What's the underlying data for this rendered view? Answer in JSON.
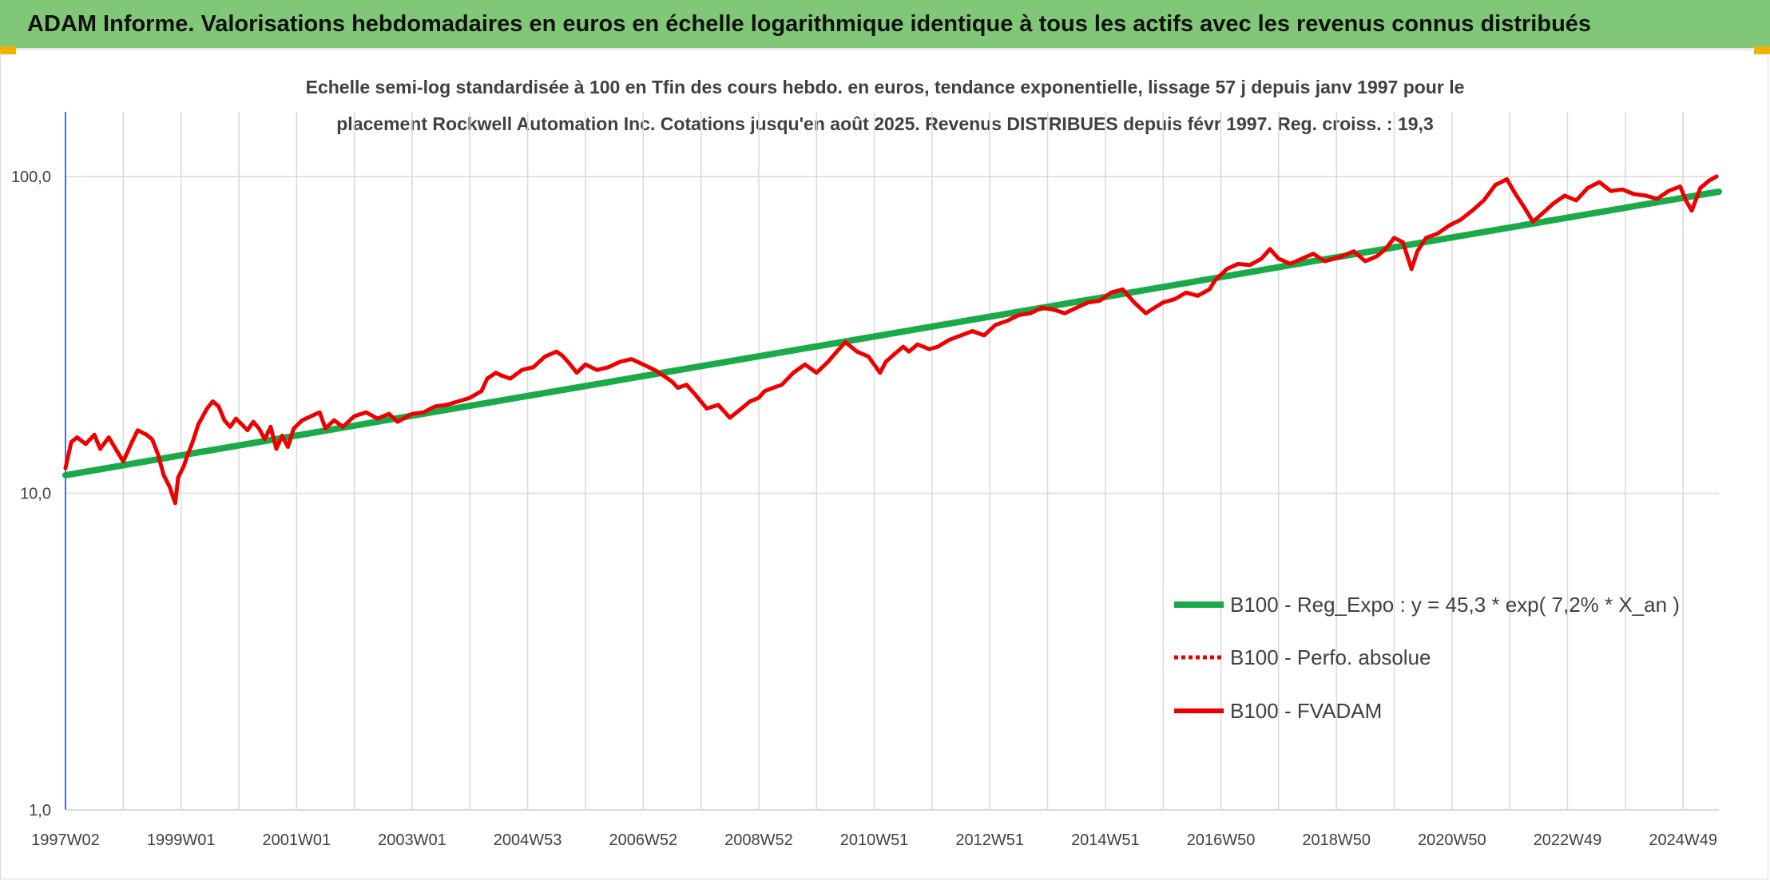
{
  "header": {
    "title": "ADAM Informe. Valorisations hebdomadaires en euros en échelle logarithmique identique à tous les actifs avec les revenus connus distribués"
  },
  "colors": {
    "banner": "#80c878",
    "corner": "#f0b400",
    "trend": "#1aaa4a",
    "fvadam": "#ee0000",
    "perfo": "#ee0000",
    "grid": "#d9d9d9",
    "axis": "#4472c4"
  },
  "chart_data": {
    "type": "line",
    "title_lines": [
      "Echelle semi-log standardisée à 100 en Tfin des cours hebdo. en euros, tendance exponentielle, lissage 57 j depuis janv 1997 pour le",
      "placement Rockwell Automation Inc. Cotations jusqu'en août 2025. Revenus DISTRIBUES depuis févr 1997. Reg. croiss. : 19,3"
    ],
    "y_scale": "log",
    "ylim": [
      1,
      160
    ],
    "y_ticks": [
      {
        "value": 1,
        "label": "1,0"
      },
      {
        "value": 10,
        "label": "10,0"
      },
      {
        "value": 100,
        "label": "100,0"
      }
    ],
    "xlim": [
      1997.0,
      2025.62
    ],
    "x_ticks": [
      {
        "value": 1997.0,
        "label": "1997W02"
      },
      {
        "value": 1999.0,
        "label": "1999W01"
      },
      {
        "value": 2001.0,
        "label": "2001W01"
      },
      {
        "value": 2003.0,
        "label": "2003W01"
      },
      {
        "value": 2005.0,
        "label": "2004W53"
      },
      {
        "value": 2007.0,
        "label": "2006W52"
      },
      {
        "value": 2009.0,
        "label": "2008W52"
      },
      {
        "value": 2011.0,
        "label": "2010W51"
      },
      {
        "value": 2013.0,
        "label": "2012W51"
      },
      {
        "value": 2015.0,
        "label": "2014W51"
      },
      {
        "value": 2017.0,
        "label": "2016W50"
      },
      {
        "value": 2019.0,
        "label": "2018W50"
      },
      {
        "value": 2021.0,
        "label": "2020W50"
      },
      {
        "value": 2023.0,
        "label": "2022W49"
      },
      {
        "value": 2025.0,
        "label": "2024W49"
      }
    ],
    "x_gridlines": [
      1998.0,
      2000.0,
      2002.0,
      2004.0,
      2006.0,
      2008.0,
      2010.0,
      2012.0,
      2014.0,
      2016.0,
      2018.0,
      2020.0,
      2022.0,
      2024.0
    ],
    "grid": true,
    "legend_position": "right",
    "series": [
      {
        "name": "B100 - Reg_Expo : y = 45,3 * exp( 7,2% *  X_an )",
        "style": "thick-solid",
        "color": "#1aaa4a",
        "x": [
          1997.0,
          2025.62
        ],
        "values": [
          11.4,
          89.5
        ]
      },
      {
        "name": "B100 - Perfo. absolue",
        "style": "dotted",
        "color": "#ee0000",
        "x": [],
        "values": []
      },
      {
        "name": "B100 - FVADAM",
        "style": "solid",
        "color": "#ee0000",
        "x": [
          1997.0,
          1997.1,
          1997.2,
          1997.35,
          1997.5,
          1997.6,
          1997.75,
          1997.9,
          1998.0,
          1998.15,
          1998.25,
          1998.4,
          1998.5,
          1998.6,
          1998.7,
          1998.8,
          1998.9,
          1998.95,
          1999.05,
          1999.1,
          1999.2,
          1999.3,
          1999.45,
          1999.55,
          1999.65,
          1999.75,
          1999.85,
          1999.95,
          2000.05,
          2000.15,
          2000.25,
          2000.35,
          2000.45,
          2000.55,
          2000.65,
          2000.75,
          2000.85,
          2000.95,
          2001.1,
          2001.25,
          2001.4,
          2001.5,
          2001.65,
          2001.8,
          2002.0,
          2002.2,
          2002.4,
          2002.6,
          2002.75,
          2002.85,
          2003.0,
          2003.2,
          2003.4,
          2003.6,
          2003.8,
          2004.0,
          2004.2,
          2004.3,
          2004.45,
          2004.55,
          2004.7,
          2004.9,
          2005.1,
          2005.3,
          2005.5,
          2005.6,
          2005.7,
          2005.85,
          2006.0,
          2006.2,
          2006.4,
          2006.6,
          2006.8,
          2007.0,
          2007.2,
          2007.35,
          2007.5,
          2007.6,
          2007.75,
          2007.9,
          2008.1,
          2008.3,
          2008.5,
          2008.7,
          2008.85,
          2009.0,
          2009.1,
          2009.25,
          2009.4,
          2009.6,
          2009.8,
          2010.0,
          2010.2,
          2010.35,
          2010.5,
          2010.7,
          2010.9,
          2011.1,
          2011.2,
          2011.35,
          2011.5,
          2011.6,
          2011.75,
          2011.95,
          2012.1,
          2012.3,
          2012.5,
          2012.7,
          2012.9,
          2013.1,
          2013.3,
          2013.5,
          2013.7,
          2013.9,
          2014.1,
          2014.3,
          2014.5,
          2014.7,
          2014.9,
          2015.1,
          2015.3,
          2015.5,
          2015.7,
          2015.85,
          2016.0,
          2016.2,
          2016.4,
          2016.6,
          2016.8,
          2016.9,
          2017.1,
          2017.3,
          2017.5,
          2017.7,
          2017.85,
          2018.0,
          2018.2,
          2018.4,
          2018.6,
          2018.8,
          2018.95,
          2019.1,
          2019.3,
          2019.5,
          2019.7,
          2019.85,
          2020.0,
          2020.15,
          2020.3,
          2020.4,
          2020.55,
          2020.75,
          2020.95,
          2021.15,
          2021.35,
          2021.55,
          2021.75,
          2021.95,
          2022.1,
          2022.25,
          2022.4,
          2022.55,
          2022.75,
          2022.95,
          2023.15,
          2023.35,
          2023.55,
          2023.75,
          2023.95,
          2024.15,
          2024.35,
          2024.55,
          2024.75,
          2024.95,
          2025.05,
          2025.15,
          2025.3,
          2025.45,
          2025.58
        ],
        "values": [
          12.0,
          14.5,
          15.0,
          14.3,
          15.3,
          13.8,
          15.0,
          13.5,
          12.6,
          14.5,
          15.8,
          15.3,
          14.8,
          13.3,
          11.4,
          10.5,
          9.3,
          11.2,
          12.2,
          13.0,
          14.5,
          16.5,
          18.5,
          19.5,
          18.8,
          17.0,
          16.2,
          17.2,
          16.5,
          15.8,
          16.8,
          16.0,
          14.8,
          16.2,
          13.8,
          15.2,
          14.0,
          16.0,
          17.0,
          17.5,
          18.0,
          16.0,
          17.0,
          16.2,
          17.5,
          18.0,
          17.2,
          17.8,
          16.8,
          17.2,
          17.8,
          18.0,
          18.8,
          19.0,
          19.5,
          20.0,
          21.0,
          23.0,
          24.0,
          23.5,
          23.0,
          24.5,
          25.0,
          27.0,
          28.0,
          27.2,
          26.0,
          24.0,
          25.5,
          24.5,
          25.0,
          26.0,
          26.5,
          25.5,
          24.5,
          23.5,
          22.5,
          21.5,
          22.0,
          20.5,
          18.5,
          19.0,
          17.3,
          18.5,
          19.5,
          20.0,
          21.0,
          21.5,
          22.0,
          24.0,
          25.5,
          24.0,
          26.0,
          28.0,
          30.0,
          28.0,
          27.0,
          24.0,
          26.0,
          27.5,
          29.0,
          28.0,
          29.5,
          28.5,
          29.0,
          30.5,
          31.5,
          32.5,
          31.5,
          34.0,
          35.0,
          36.5,
          37.0,
          38.5,
          38.0,
          37.0,
          38.5,
          40.0,
          40.5,
          43.0,
          44.0,
          40.0,
          37.0,
          38.5,
          40.0,
          41.0,
          43.0,
          42.0,
          44.0,
          47.0,
          51.0,
          53.0,
          52.5,
          55.0,
          59.0,
          55.0,
          53.0,
          55.0,
          57.0,
          54.0,
          55.0,
          56.0,
          58.0,
          54.0,
          56.0,
          59.0,
          64.0,
          62.0,
          51.0,
          58.0,
          64.0,
          66.0,
          70.0,
          73.0,
          78.0,
          84.0,
          94.0,
          98.0,
          88.0,
          80.0,
          72.0,
          76.0,
          82.0,
          87.0,
          84.0,
          92.0,
          96.0,
          90.0,
          91.0,
          88.0,
          87.0,
          85.0,
          90.0,
          93.0,
          84.0,
          78.0,
          92.0,
          97.0,
          100.0
        ]
      }
    ]
  }
}
